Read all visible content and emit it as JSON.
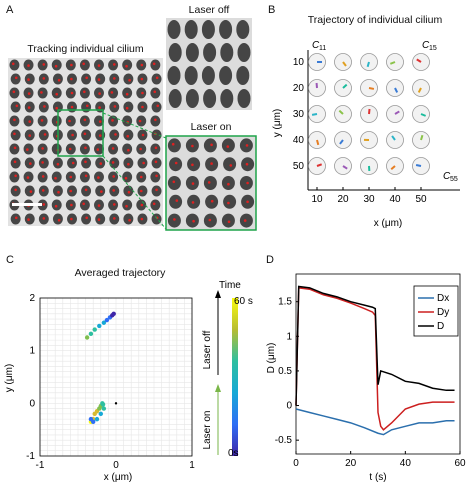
{
  "panels": {
    "A": {
      "letter": "A",
      "title": "Tracking individual cilium",
      "laser_off_label": "Laser off",
      "laser_on_label": "Laser on"
    },
    "B": {
      "letter": "B",
      "title": "Trajectory of individual cilium",
      "ylabel": "y (μm)",
      "xlabel": "x (μm)",
      "x_ticks": [
        "10",
        "20",
        "30",
        "40",
        "50"
      ],
      "y_ticks": [
        "10",
        "20",
        "30",
        "40",
        "50"
      ],
      "labels": {
        "c11": "C",
        "c11_sub": "11",
        "c15": "C",
        "c15_sub": "15",
        "c55": "C",
        "c55_sub": "55"
      }
    },
    "C": {
      "letter": "C",
      "title": "Averaged trajectory",
      "ylabel": "y (μm)",
      "xlabel": "x (μm)",
      "colorbar_title": "Time",
      "colorbar_top": "60 s",
      "colorbar_bottom": "0s",
      "laser_off": "Laser off",
      "laser_on": "Laser on"
    },
    "D": {
      "letter": "D",
      "ylabel": "D (μm)",
      "xlabel": "t (s)"
    }
  },
  "colors": {
    "green_box": "#1fa34a",
    "dx": "#2b6fad",
    "dy": "#cc1f1f",
    "d": "#000000"
  },
  "chart_data": [
    {
      "type": "scatter",
      "panel": "C",
      "title": "Averaged trajectory",
      "xlabel": "x (μm)",
      "ylabel": "y (μm)",
      "xlim": [
        -1,
        1
      ],
      "ylim": [
        -1,
        2
      ],
      "x_ticks": [
        "-1",
        "0",
        "1"
      ],
      "y_ticks": [
        "-1",
        "0",
        "1",
        "2"
      ],
      "grid": true,
      "colormap": "parula (time 0s–60 s)",
      "series": [
        {
          "name": "",
          "x": [
            -0.33,
            -0.3,
            -0.28,
            -0.25,
            -0.22,
            -0.2,
            -0.18,
            -0.17,
            -0.16,
            -0.2,
            -0.25,
            -0.3,
            -0.33
          ],
          "y": [
            -0.35,
            -0.3,
            -0.2,
            -0.15,
            -0.1,
            -0.05,
            0.0,
            -0.02,
            -0.1,
            -0.2,
            -0.3,
            -0.35,
            -0.3
          ]
        },
        {
          "name": "",
          "x": [
            -0.38,
            -0.33,
            -0.28,
            -0.22,
            -0.16,
            -0.12,
            -0.08,
            -0.05,
            -0.03
          ],
          "y": [
            1.25,
            1.32,
            1.4,
            1.47,
            1.53,
            1.58,
            1.63,
            1.67,
            1.7
          ]
        }
      ]
    },
    {
      "type": "line",
      "panel": "D",
      "xlabel": "t (s)",
      "ylabel": "D (μm)",
      "xlim": [
        0,
        60
      ],
      "ylim": [
        -0.7,
        1.9
      ],
      "x_ticks": [
        "0",
        "20",
        "40",
        "60"
      ],
      "y_ticks": [
        "-0.5",
        "0",
        "0.5",
        "1",
        "1.5"
      ],
      "legend": "top-right",
      "series": [
        {
          "name": "Dx",
          "sub": "x",
          "x": [
            0,
            5,
            10,
            15,
            20,
            25,
            30,
            32,
            35,
            40,
            45,
            50,
            55,
            58
          ],
          "y": [
            -0.05,
            -0.1,
            -0.15,
            -0.2,
            -0.25,
            -0.32,
            -0.4,
            -0.42,
            -0.35,
            -0.3,
            -0.25,
            -0.25,
            -0.22,
            -0.22
          ]
        },
        {
          "name": "Dy",
          "sub": "y",
          "x": [
            0,
            1,
            5,
            10,
            15,
            20,
            25,
            28,
            29,
            30,
            31,
            32,
            35,
            40,
            45,
            50,
            55,
            58
          ],
          "y": [
            0.0,
            1.7,
            1.68,
            1.6,
            1.55,
            1.48,
            1.4,
            1.35,
            1.3,
            -0.1,
            -0.3,
            -0.35,
            -0.25,
            -0.05,
            0.02,
            0.05,
            0.05,
            0.05
          ]
        },
        {
          "name": "D",
          "sub": "",
          "x": [
            0,
            1,
            5,
            10,
            15,
            20,
            25,
            28,
            29,
            30,
            31,
            35,
            40,
            45,
            50,
            55,
            58
          ],
          "y": [
            0.0,
            1.72,
            1.7,
            1.62,
            1.57,
            1.5,
            1.45,
            1.42,
            1.4,
            0.3,
            0.5,
            0.45,
            0.35,
            0.32,
            0.25,
            0.22,
            0.22
          ]
        }
      ]
    }
  ]
}
